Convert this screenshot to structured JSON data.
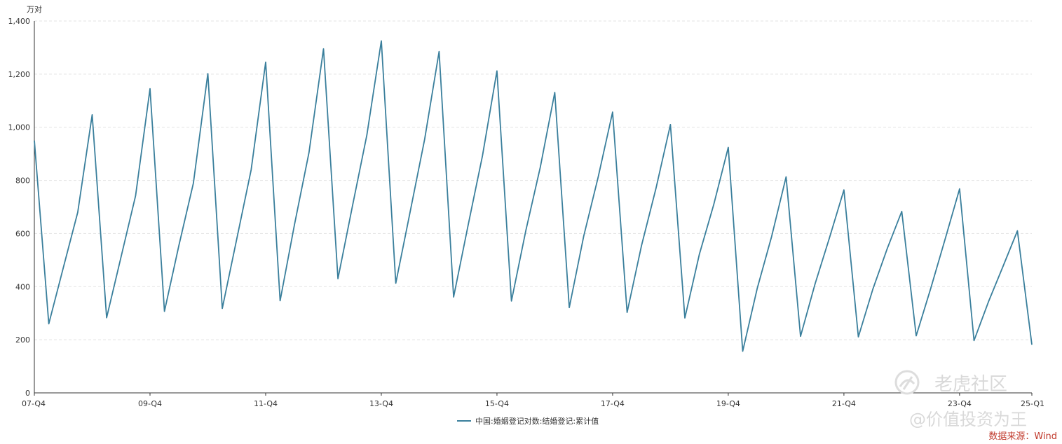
{
  "chart_data": {
    "type": "line",
    "y_unit": "万对",
    "ylim": [
      0,
      1400
    ],
    "y_ticks": [
      "0",
      "200",
      "400",
      "600",
      "800",
      "1,000",
      "1,200",
      "1,400"
    ],
    "x_tick_labels": [
      "07-Q4",
      "09-Q4",
      "11-Q4",
      "13-Q4",
      "15-Q4",
      "17-Q4",
      "19-Q4",
      "21-Q4",
      "23-Q4",
      "25-Q1"
    ],
    "grid": true,
    "legend_position": "bottom-center",
    "series": [
      {
        "name": "中国:婚姻登记对数:结婚登记:累计值",
        "color": "#3a7f9c",
        "x": [
          "07-Q4",
          "08-Q1",
          "08-Q2",
          "08-Q3",
          "08-Q4",
          "09-Q1",
          "09-Q2",
          "09-Q3",
          "09-Q4",
          "10-Q1",
          "10-Q2",
          "10-Q3",
          "10-Q4",
          "11-Q1",
          "11-Q2",
          "11-Q3",
          "11-Q4",
          "12-Q1",
          "12-Q2",
          "12-Q3",
          "12-Q4",
          "13-Q1",
          "13-Q2",
          "13-Q3",
          "13-Q4",
          "14-Q1",
          "14-Q2",
          "14-Q3",
          "14-Q4",
          "15-Q1",
          "15-Q2",
          "15-Q3",
          "15-Q4",
          "16-Q1",
          "16-Q2",
          "16-Q3",
          "16-Q4",
          "17-Q1",
          "17-Q2",
          "17-Q3",
          "17-Q4",
          "18-Q1",
          "18-Q2",
          "18-Q3",
          "18-Q4",
          "19-Q1",
          "19-Q2",
          "19-Q3",
          "19-Q4",
          "20-Q1",
          "20-Q2",
          "20-Q3",
          "20-Q4",
          "21-Q1",
          "21-Q2",
          "21-Q3",
          "21-Q4",
          "22-Q1",
          "22-Q2",
          "22-Q3",
          "22-Q4",
          "23-Q1",
          "23-Q2",
          "23-Q3",
          "23-Q4",
          "24-Q1",
          "24-Q2",
          "24-Q3",
          "24-Q4",
          "25-Q1"
        ],
        "values": [
          950,
          260,
          470,
          680,
          1047,
          283,
          512,
          742,
          1145,
          307,
          555,
          790,
          1202,
          318,
          579,
          840,
          1245,
          347,
          635,
          905,
          1295,
          430,
          702,
          970,
          1325,
          413,
          683,
          955,
          1285,
          361,
          630,
          893,
          1212,
          346,
          612,
          850,
          1131,
          321,
          590,
          812,
          1057,
          303,
          555,
          770,
          1010,
          282,
          522,
          710,
          924,
          157,
          393,
          589,
          813,
          213,
          410,
          584,
          764,
          211,
          390,
          544,
          683,
          215,
          392,
          579,
          768,
          197,
          343,
          476,
          610,
          181
        ]
      }
    ]
  },
  "watermark": {
    "brand": "老虎社区",
    "account": "@价值投资为王"
  },
  "source_note": "数据来源：Wind"
}
